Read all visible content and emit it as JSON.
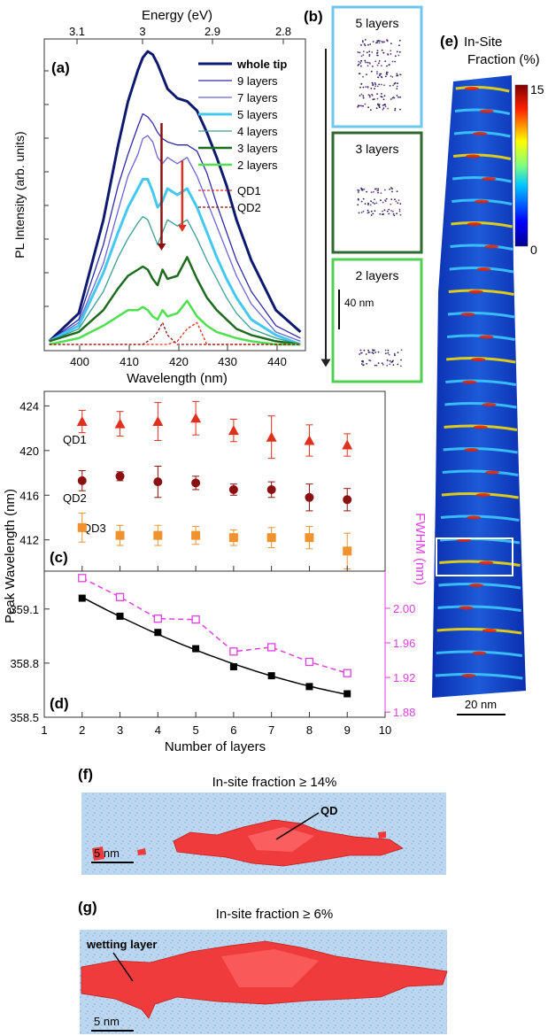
{
  "panel_a": {
    "label": "(a)",
    "top_axis_title": "Energy (eV)",
    "top_ticks": [
      "3.1",
      "3",
      "2.9",
      "2.8"
    ],
    "x_label": "Wavelength (nm)",
    "y_label": "PL Intensity (arb. units)",
    "x_ticks": [
      "400",
      "410",
      "420",
      "430",
      "440"
    ],
    "legend": [
      {
        "label": "whole tip",
        "color": "#0d1a6e"
      },
      {
        "label": "9 layers",
        "color": "#2d2aa8"
      },
      {
        "label": "7 layers",
        "color": "#6a66d8"
      },
      {
        "label": "5 layers",
        "color": "#44c8f0"
      },
      {
        "label": "4 layers",
        "color": "#3a9e94"
      },
      {
        "label": "3 layers",
        "color": "#1d6b1d"
      },
      {
        "label": "2 layers",
        "color": "#4fe04f"
      },
      {
        "label": "QD1",
        "color": "#e0301e"
      },
      {
        "label": "QD2",
        "color": "#8b1010"
      }
    ]
  },
  "panel_b": {
    "label": "(b)",
    "boxes": [
      {
        "title": "5 layers",
        "color": "#6ec6ee"
      },
      {
        "title": "3 layers",
        "color": "#2e6a2e"
      },
      {
        "title": "2 layers",
        "color": "#50d050"
      }
    ],
    "scale": "40 nm"
  },
  "panel_e": {
    "label": "(e)",
    "title_line1": "In-Site",
    "title_line2": "Fraction (%)",
    "colorbar_max": "15",
    "colorbar_min": "0",
    "scale": "20 nm"
  },
  "panel_c": {
    "label": "(c)",
    "series_labels": [
      "QD1",
      "QD2",
      "QD3"
    ],
    "y_ticks": [
      "424",
      "420",
      "416",
      "412"
    ]
  },
  "panel_d": {
    "label": "(d)",
    "y_ticks": [
      "359.1",
      "358.8",
      "358.5"
    ],
    "y2_ticks": [
      "2.00",
      "1.96",
      "1.92",
      "1.88"
    ],
    "y2_label": "FWHM (nm)"
  },
  "shared": {
    "y_label": "Peak Wavelength (nm)",
    "x_label": "Number of layers",
    "x_ticks": [
      "1",
      "2",
      "3",
      "4",
      "5",
      "6",
      "7",
      "8",
      "9",
      "10"
    ]
  },
  "panel_f": {
    "label": "(f)",
    "title": "In-site fraction ≥ 14%",
    "annotation": "QD",
    "scale": "5 nm"
  },
  "panel_g": {
    "label": "(g)",
    "title": "In-site fraction ≥ 6%",
    "annotation": "wetting layer",
    "scale": "5 nm"
  },
  "chart_data": [
    {
      "type": "line",
      "panel": "(a)",
      "xlim": [
        393,
        446
      ],
      "x": [
        394,
        400,
        405,
        408,
        410,
        412,
        413,
        414,
        415,
        416,
        417,
        418,
        420,
        422,
        424,
        426,
        428,
        430,
        432,
        435,
        440,
        445
      ],
      "series": [
        {
          "name": "whole tip",
          "values": [
            0.03,
            0.12,
            0.42,
            0.66,
            0.8,
            0.9,
            0.94,
            0.96,
            0.95,
            0.92,
            0.88,
            0.84,
            0.81,
            0.8,
            0.77,
            0.7,
            0.62,
            0.53,
            0.42,
            0.29,
            0.13,
            0.06
          ]
        },
        {
          "name": "9 layers",
          "values": [
            0.03,
            0.1,
            0.34,
            0.53,
            0.63,
            0.72,
            0.76,
            0.75,
            0.73,
            0.7,
            0.68,
            0.67,
            0.66,
            0.66,
            0.64,
            0.57,
            0.47,
            0.38,
            0.29,
            0.19,
            0.08,
            0.04
          ]
        },
        {
          "name": "7 layers",
          "values": [
            0.03,
            0.09,
            0.28,
            0.45,
            0.56,
            0.63,
            0.68,
            0.69,
            0.67,
            0.62,
            0.6,
            0.62,
            0.6,
            0.62,
            0.56,
            0.48,
            0.4,
            0.32,
            0.24,
            0.15,
            0.06,
            0.03
          ]
        },
        {
          "name": "5 layers",
          "values": [
            0.03,
            0.08,
            0.25,
            0.38,
            0.46,
            0.52,
            0.55,
            0.55,
            0.51,
            0.46,
            0.48,
            0.52,
            0.5,
            0.52,
            0.46,
            0.38,
            0.3,
            0.23,
            0.17,
            0.1,
            0.05,
            0.02
          ]
        },
        {
          "name": "4 layers",
          "values": [
            0.03,
            0.07,
            0.19,
            0.3,
            0.36,
            0.41,
            0.43,
            0.42,
            0.38,
            0.34,
            0.38,
            0.42,
            0.4,
            0.42,
            0.36,
            0.29,
            0.23,
            0.17,
            0.12,
            0.07,
            0.04,
            0.02
          ]
        },
        {
          "name": "3 layers",
          "values": [
            0.03,
            0.06,
            0.13,
            0.2,
            0.24,
            0.26,
            0.27,
            0.26,
            0.23,
            0.21,
            0.26,
            0.23,
            0.24,
            0.3,
            0.23,
            0.17,
            0.13,
            0.1,
            0.07,
            0.05,
            0.03,
            0.02
          ]
        },
        {
          "name": "2 layers",
          "values": [
            0.02,
            0.04,
            0.08,
            0.11,
            0.13,
            0.13,
            0.14,
            0.13,
            0.11,
            0.1,
            0.13,
            0.11,
            0.12,
            0.16,
            0.11,
            0.08,
            0.06,
            0.05,
            0.04,
            0.03,
            0.02,
            0.02
          ]
        },
        {
          "name": "QD1",
          "dashed": true,
          "values": [
            0.02,
            0.02,
            0.02,
            0.02,
            0.02,
            0.02,
            0.02,
            0.02,
            0.02,
            0.02,
            0.02,
            0.02,
            0.03,
            0.07,
            0.09,
            0.02,
            0.02,
            0.02,
            0.02,
            0.02,
            0.02,
            0.02
          ]
        },
        {
          "name": "QD2",
          "dashed": true,
          "values": [
            0.02,
            0.02,
            0.02,
            0.02,
            0.02,
            0.02,
            0.02,
            0.03,
            0.04,
            0.06,
            0.09,
            0.05,
            0.02,
            0.02,
            0.02,
            0.02,
            0.02,
            0.02,
            0.02,
            0.02,
            0.02,
            0.02
          ]
        }
      ],
      "arrows": [
        {
          "color": "#8b1010",
          "x": 416.8,
          "from": 0.73,
          "to": 0.31
        },
        {
          "color": "#e0301e",
          "x": 421.0,
          "from": 0.61,
          "to": 0.37
        }
      ]
    },
    {
      "type": "scatter",
      "panel": "(c)",
      "x": [
        2,
        3,
        4,
        5,
        6,
        7,
        8,
        9
      ],
      "xlim": [
        1,
        10
      ],
      "ylim": [
        409.2,
        425.3
      ],
      "series": [
        {
          "name": "QD1",
          "marker": "triangle",
          "color": "#e0301e",
          "values": [
            422.6,
            422.4,
            422.6,
            422.9,
            421.8,
            421.2,
            420.9,
            420.5
          ],
          "err": [
            1.0,
            1.1,
            1.7,
            1.5,
            1.0,
            1.9,
            1.4,
            1.0
          ]
        },
        {
          "name": "QD2",
          "marker": "circle",
          "color": "#8b1010",
          "values": [
            417.3,
            417.7,
            417.2,
            417.1,
            416.5,
            416.5,
            415.8,
            415.6
          ],
          "err": [
            0.9,
            0.4,
            1.4,
            0.6,
            0.5,
            0.7,
            1.2,
            1.0
          ]
        },
        {
          "name": "QD3",
          "marker": "square",
          "color": "#f0922e",
          "values": [
            413.1,
            412.4,
            412.4,
            412.4,
            412.2,
            412.2,
            412.2,
            411.0
          ],
          "err": [
            1.3,
            0.9,
            0.9,
            0.8,
            0.7,
            0.9,
            1.0,
            1.6
          ]
        }
      ]
    },
    {
      "type": "line",
      "panel": "(d)",
      "x": [
        2,
        3,
        4,
        5,
        6,
        7,
        8,
        9
      ],
      "xlim": [
        1,
        10
      ],
      "series": [
        {
          "name": "Peak Wavelength",
          "axis": "left",
          "marker": "filled-square",
          "color": "#000000",
          "ylim": [
            358.5,
            359.31
          ],
          "values": [
            359.16,
            359.06,
            358.97,
            358.88,
            358.78,
            358.73,
            358.67,
            358.63
          ]
        },
        {
          "name": "FWHM",
          "axis": "right",
          "marker": "open-square",
          "color": "#e040e0",
          "ylim": [
            1.874,
            2.043
          ],
          "values": [
            2.035,
            2.013,
            1.988,
            1.987,
            1.95,
            1.955,
            1.938,
            1.925
          ]
        }
      ]
    }
  ]
}
